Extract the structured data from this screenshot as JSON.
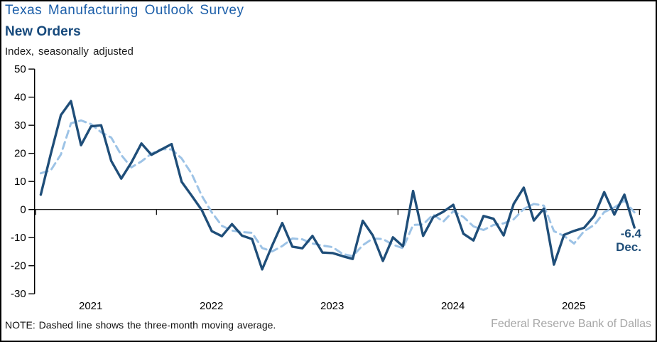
{
  "header": {
    "title": "Texas Manufacturing Outlook Survey",
    "subtitle": "New Orders",
    "axis_note": "Index, seasonally adjusted"
  },
  "annotation": {
    "value": "-6.4",
    "month": "Dec."
  },
  "footer": {
    "note": "NOTE: Dashed line shows the three-month moving average.",
    "source": "Federal Reserve Bank of Dallas"
  },
  "colors": {
    "title_blue": "#1b5ea9",
    "subtitle_navy": "#16497c",
    "solid_line": "#1f4e79",
    "dashed_line": "#9dc3e6",
    "axis": "#000000",
    "annotation": "#1f4e79",
    "source_gray": "#a6a6a6"
  },
  "chart_data": {
    "type": "line",
    "title": "Texas Manufacturing Outlook Survey — New Orders",
    "ylabel": "Index, seasonally adjusted",
    "ylim": [
      -30,
      50
    ],
    "yticks": [
      50,
      40,
      30,
      20,
      10,
      0,
      -10,
      -20,
      -30
    ],
    "x_tick_labels": [
      "2021",
      "2022",
      "2023",
      "2024",
      "2025"
    ],
    "frequency": "monthly",
    "x_start": "Jan 2021",
    "x_end": "Dec 2025",
    "grid": false,
    "legend_position": "none",
    "last_point_label": "-6.4 Dec.",
    "series": [
      {
        "name": "New orders index (monthly)",
        "style": "solid",
        "values": [
          5.3,
          19.9,
          33.6,
          38.6,
          22.9,
          29.6,
          30.0,
          17.3,
          11.0,
          16.7,
          23.5,
          19.5,
          21.4,
          23.3,
          9.9,
          4.9,
          -0.2,
          -7.7,
          -9.5,
          -5.2,
          -9.3,
          -10.5,
          -21.3,
          -12.8,
          -4.8,
          -13.2,
          -13.8,
          -9.4,
          -15.3,
          -15.5,
          -16.6,
          -17.6,
          -4.0,
          -9.2,
          -18.3,
          -9.9,
          -13.1,
          6.6,
          -9.4,
          -2.7,
          -0.8,
          1.7,
          -8.6,
          -11.0,
          -2.3,
          -3.3,
          -9.2,
          2.0,
          7.8,
          -3.9,
          0.3,
          -19.6,
          -9.0,
          -7.6,
          -6.5,
          -2.3,
          6.2,
          -1.8,
          5.3,
          -6.4
        ]
      },
      {
        "name": "Three-month moving average",
        "style": "dashed",
        "values": [
          12.9,
          14.0,
          19.6,
          30.7,
          31.7,
          30.4,
          27.5,
          25.6,
          19.4,
          15.0,
          17.1,
          19.9,
          21.5,
          21.4,
          18.2,
          12.7,
          4.9,
          -1.0,
          -5.8,
          -7.5,
          -8.0,
          -8.3,
          -13.7,
          -14.9,
          -13.0,
          -10.3,
          -10.6,
          -12.1,
          -12.8,
          -13.4,
          -15.8,
          -16.6,
          -12.7,
          -10.3,
          -10.5,
          -12.5,
          -13.8,
          -5.5,
          -5.3,
          -1.8,
          -4.3,
          -0.6,
          -2.6,
          -6.0,
          -7.3,
          -5.5,
          -4.9,
          -3.5,
          0.2,
          2.0,
          1.4,
          -7.7,
          -9.4,
          -12.1,
          -7.7,
          -5.5,
          -0.9,
          0.7,
          3.2,
          -1.0
        ]
      }
    ]
  }
}
